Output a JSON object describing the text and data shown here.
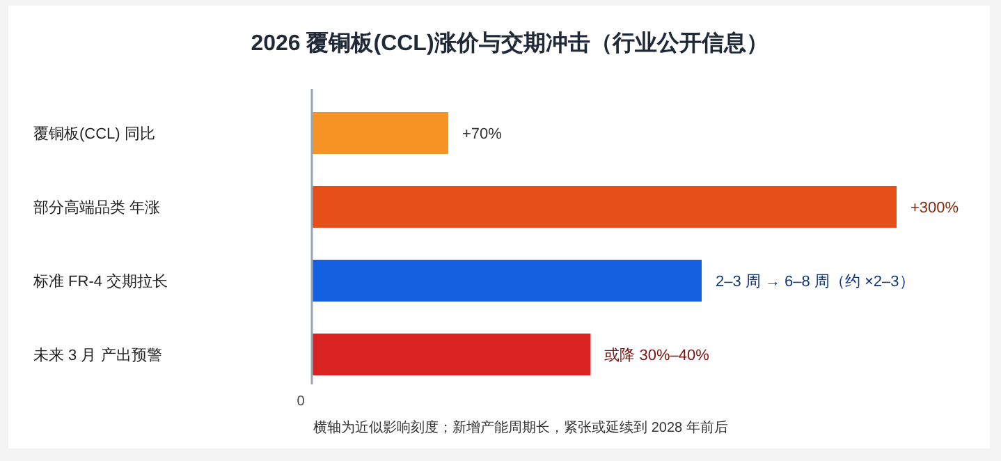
{
  "chart_data": {
    "type": "bar",
    "orientation": "horizontal",
    "xlim": [
      0,
      300
    ],
    "title": "2026 覆铜板(CCL)涨价与交期冲击（行业公开信息）",
    "categories": [
      "覆铜板(CCL) 同比",
      "部分高端品类 年涨",
      "标准 FR-4 交期拉长",
      "未来 3 月 产出预警"
    ],
    "values": [
      70,
      300,
      200,
      143
    ],
    "colors": [
      "#f59425",
      "#e64f18",
      "#1560e0",
      "#d92323"
    ],
    "value_labels": [
      "+70%",
      "+300%",
      null,
      null
    ],
    "annotations": [
      "0",
      "横轴为近似影响刻度；新增产能周期长，紧张或延续到 2028 年前后",
      {
        "text": "2–3 周 → 6–8 周（约 ×2–3）",
        "x": 200,
        "y": "标准 FR-4 交期拉长"
      },
      {
        "text": "或降 30%–40%",
        "x": 143,
        "y": "未来 3 月 产出预警"
      }
    ]
  }
}
